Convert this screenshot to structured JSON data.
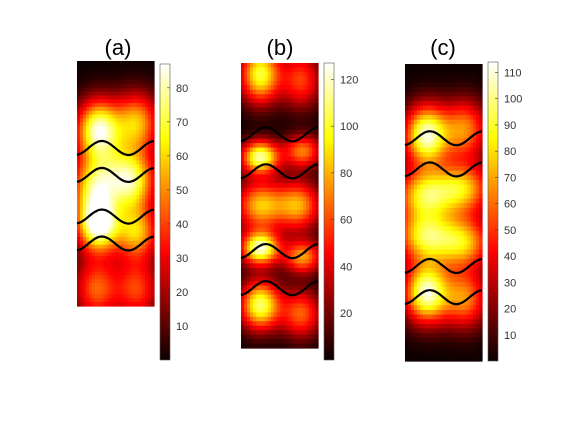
{
  "chart_data": [
    {
      "type": "heatmap",
      "title": "(a)",
      "colormap": "hot",
      "colorbar": {
        "min": 0,
        "max": 87,
        "ticks": [
          10,
          20,
          30,
          40,
          50,
          60,
          70,
          80
        ]
      },
      "hotspots": [
        {
          "cx": 0.28,
          "cy": 0.28,
          "sx": 0.2,
          "sy": 0.085,
          "a": 0.92
        },
        {
          "cx": 0.78,
          "cy": 0.25,
          "sx": 0.2,
          "sy": 0.085,
          "a": 0.62
        },
        {
          "cx": 0.22,
          "cy": 0.53,
          "sx": 0.2,
          "sy": 0.085,
          "a": 0.55
        },
        {
          "cx": 0.72,
          "cy": 0.5,
          "sx": 0.2,
          "sy": 0.085,
          "a": 0.55
        },
        {
          "cx": 0.5,
          "cy": 0.46,
          "sx": 0.32,
          "sy": 0.09,
          "a": 0.45
        },
        {
          "cx": 0.28,
          "cy": 0.67,
          "sx": 0.19,
          "sy": 0.075,
          "a": 1.0
        },
        {
          "cx": 0.78,
          "cy": 0.7,
          "sx": 0.19,
          "sy": 0.075,
          "a": 0.62
        },
        {
          "cx": 0.25,
          "cy": 0.93,
          "sx": 0.2,
          "sy": 0.09,
          "a": 0.5
        },
        {
          "cx": 0.78,
          "cy": 0.93,
          "sx": 0.2,
          "sy": 0.09,
          "a": 0.45
        }
      ],
      "interfaces": [
        0.355,
        0.465,
        0.635,
        0.745
      ]
    },
    {
      "type": "heatmap",
      "title": "(b)",
      "colormap": "hot",
      "colorbar": {
        "min": 0,
        "max": 127,
        "ticks": [
          20,
          40,
          60,
          80,
          100,
          120
        ]
      },
      "hotspots": [
        {
          "cx": 0.25,
          "cy": 0.04,
          "sx": 0.18,
          "sy": 0.07,
          "a": 0.8
        },
        {
          "cx": 0.78,
          "cy": 0.06,
          "sx": 0.18,
          "sy": 0.07,
          "a": 0.45
        },
        {
          "cx": 0.25,
          "cy": 0.33,
          "sx": 0.17,
          "sy": 0.04,
          "a": 0.9
        },
        {
          "cx": 0.8,
          "cy": 0.31,
          "sx": 0.17,
          "sy": 0.04,
          "a": 0.55
        },
        {
          "cx": 0.25,
          "cy": 0.5,
          "sx": 0.22,
          "sy": 0.06,
          "a": 0.65
        },
        {
          "cx": 0.75,
          "cy": 0.5,
          "sx": 0.2,
          "sy": 0.06,
          "a": 0.6
        },
        {
          "cx": 0.25,
          "cy": 0.65,
          "sx": 0.17,
          "sy": 0.04,
          "a": 0.95
        },
        {
          "cx": 0.8,
          "cy": 0.68,
          "sx": 0.17,
          "sy": 0.04,
          "a": 0.6
        },
        {
          "cx": 0.25,
          "cy": 0.85,
          "sx": 0.18,
          "sy": 0.06,
          "a": 0.85
        },
        {
          "cx": 0.78,
          "cy": 0.88,
          "sx": 0.18,
          "sy": 0.06,
          "a": 0.5
        }
      ],
      "interfaces": [
        0.25,
        0.38,
        0.66,
        0.79
      ]
    },
    {
      "type": "heatmap",
      "title": "(c)",
      "colormap": "hot",
      "colorbar": {
        "min": 0,
        "max": 114,
        "ticks": [
          10,
          20,
          30,
          40,
          50,
          60,
          70,
          80,
          90,
          100,
          110
        ]
      },
      "hotspots": [
        {
          "cx": 0.28,
          "cy": 0.24,
          "sx": 0.2,
          "sy": 0.07,
          "a": 0.95
        },
        {
          "cx": 0.78,
          "cy": 0.22,
          "sx": 0.2,
          "sy": 0.07,
          "a": 0.55
        },
        {
          "cx": 0.25,
          "cy": 0.44,
          "sx": 0.25,
          "sy": 0.06,
          "a": 0.7
        },
        {
          "cx": 0.75,
          "cy": 0.42,
          "sx": 0.25,
          "sy": 0.06,
          "a": 0.65
        },
        {
          "cx": 0.25,
          "cy": 0.58,
          "sx": 0.25,
          "sy": 0.06,
          "a": 0.7
        },
        {
          "cx": 0.75,
          "cy": 0.6,
          "sx": 0.25,
          "sy": 0.06,
          "a": 0.65
        },
        {
          "cx": 0.28,
          "cy": 0.77,
          "sx": 0.2,
          "sy": 0.07,
          "a": 0.95
        },
        {
          "cx": 0.78,
          "cy": 0.79,
          "sx": 0.2,
          "sy": 0.07,
          "a": 0.55
        }
      ],
      "interfaces": [
        0.25,
        0.355,
        0.68,
        0.785
      ]
    }
  ]
}
